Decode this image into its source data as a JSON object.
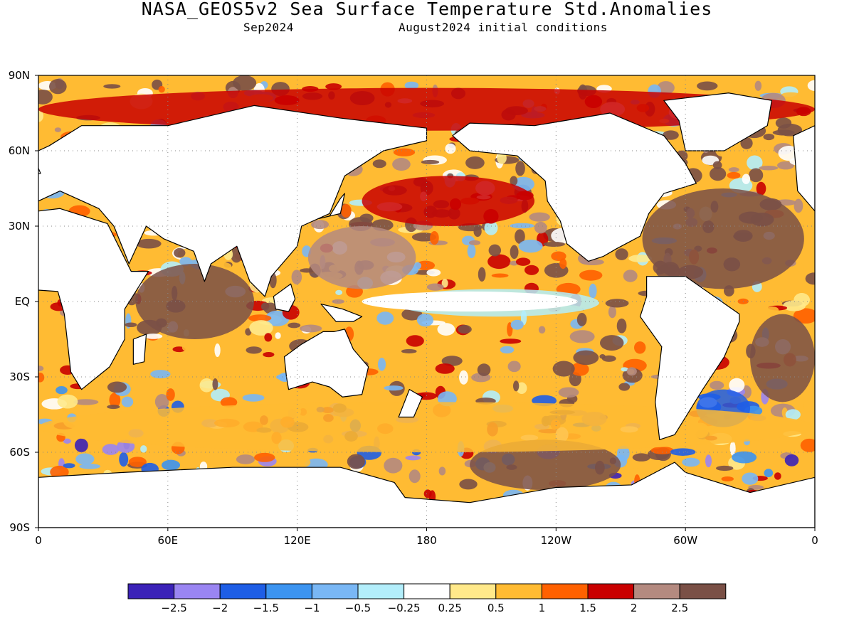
{
  "header": {
    "title": "NASA_GEOS5v2 Sea Surface Temperature Std.Anomalies",
    "valid_month": "Sep2024",
    "init": "August2024 initial conditions"
  },
  "axes": {
    "lat_labels": [
      "90N",
      "60N",
      "30N",
      "EQ",
      "30S",
      "60S",
      "90S"
    ],
    "lat_values": [
      90,
      60,
      30,
      0,
      -30,
      -60,
      -90
    ],
    "lon_labels": [
      "0",
      "60E",
      "120E",
      "180",
      "120W",
      "60W",
      "0"
    ],
    "lon_values": [
      0,
      60,
      120,
      180,
      240,
      300,
      360
    ]
  },
  "colorbar": {
    "colors": [
      "#3b22b8",
      "#9a85f2",
      "#1e5ee6",
      "#3c94f0",
      "#79b7f5",
      "#b3eefb",
      "#ffffff",
      "#ffe98a",
      "#ffbb33",
      "#ff6100",
      "#c90000",
      "#b48a80",
      "#7a5046"
    ],
    "labels": [
      "-2.5",
      "-2",
      "-1.5",
      "-1",
      "-0.5",
      "-0.25",
      "0.25",
      "0.5",
      "1",
      "1.5",
      "2",
      "2.5"
    ]
  },
  "anomaly_regions": [
    {
      "name": "equatorial-pacific-cold-tongue",
      "lon": [
        165,
        260
      ],
      "lat": [
        -6,
        5
      ],
      "value": -0.5
    },
    {
      "name": "northwest-pacific-warm",
      "lon": [
        125,
        175
      ],
      "lat": [
        5,
        30
      ],
      "value": 2
    },
    {
      "name": "north-pacific-warm-band",
      "lon": [
        150,
        230
      ],
      "lat": [
        30,
        50
      ],
      "value": 1.5
    },
    {
      "name": "subtropical-atlantic-warm",
      "lon": [
        280,
        355
      ],
      "lat": [
        5,
        45
      ],
      "value": 2.5
    },
    {
      "name": "indian-ocean-warm",
      "lon": [
        45,
        100
      ],
      "lat": [
        -15,
        15
      ],
      "value": 2.5
    },
    {
      "name": "south-pacific-warm",
      "lon": [
        200,
        270
      ],
      "lat": [
        -75,
        -55
      ],
      "value": 2.5
    },
    {
      "name": "south-atlantic-cold",
      "lon": [
        305,
        330
      ],
      "lat": [
        -50,
        -35
      ],
      "value": -2
    },
    {
      "name": "southern-ocean-mixed",
      "lon": [
        0,
        360
      ],
      "lat": [
        -60,
        -40
      ],
      "value": 0.5
    },
    {
      "name": "arctic-warm",
      "lon": [
        0,
        360
      ],
      "lat": [
        68,
        85
      ],
      "value": 1.5
    },
    {
      "name": "east-atlantic-south-warm",
      "lon": [
        330,
        360
      ],
      "lat": [
        -40,
        -5
      ],
      "value": 2.5
    }
  ]
}
